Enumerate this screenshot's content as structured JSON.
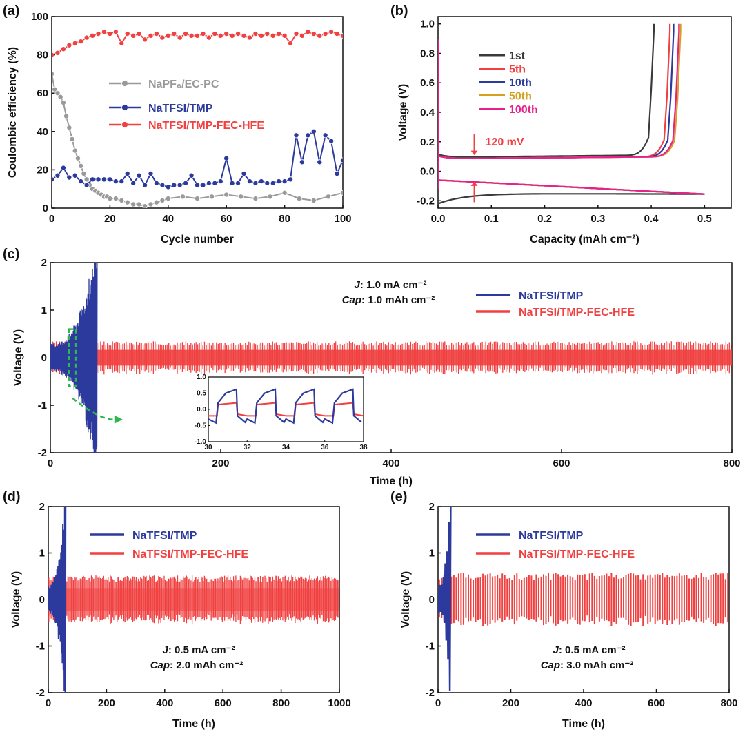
{
  "colors": {
    "gray": "#9a9a9a",
    "blue": "#2b3a9c",
    "red": "#f04040",
    "black": "#3a3a3a",
    "mustard": "#d4a020",
    "pink": "#e8208c",
    "green": "#2db84a"
  },
  "chart_data": [
    {
      "panel": "(a)",
      "type": "line",
      "xlabel": "Cycle number",
      "ylabel": "Coulombic efficiency (%)",
      "xlim": [
        0,
        100
      ],
      "ylim": [
        0,
        100
      ],
      "xticks": [
        "0",
        "20",
        "40",
        "60",
        "80",
        "100"
      ],
      "yticks": [
        "0",
        "20",
        "40",
        "60",
        "80",
        "100"
      ],
      "legend_position": "center-right",
      "series": [
        {
          "name": "NaPF₆/EC-PC",
          "color": "gray",
          "x": [
            0,
            1,
            2,
            3,
            4,
            5,
            6,
            7,
            8,
            9,
            10,
            11,
            12,
            13,
            14,
            15,
            16,
            17,
            18,
            19,
            20,
            22,
            24,
            26,
            28,
            30,
            32,
            34,
            36,
            38,
            40,
            45,
            50,
            55,
            60,
            65,
            70,
            75,
            80,
            85,
            90,
            95,
            100
          ],
          "y": [
            70,
            62,
            60,
            58,
            55,
            48,
            42,
            36,
            30,
            26,
            22,
            18,
            15,
            12,
            10,
            9,
            8,
            7,
            6,
            6,
            5,
            5,
            4,
            3,
            2,
            2,
            1,
            2,
            3,
            4,
            5,
            6,
            5,
            6,
            7,
            6,
            5,
            6,
            8,
            5,
            4,
            6,
            8
          ]
        },
        {
          "name": "NaTFSI/TMP",
          "color": "blue",
          "x": [
            0,
            2,
            4,
            6,
            8,
            10,
            12,
            14,
            16,
            18,
            20,
            22,
            24,
            26,
            28,
            30,
            32,
            34,
            36,
            38,
            40,
            42,
            44,
            46,
            48,
            50,
            52,
            54,
            56,
            58,
            60,
            62,
            64,
            66,
            68,
            70,
            72,
            74,
            76,
            78,
            80,
            82,
            84,
            86,
            88,
            90,
            92,
            94,
            96,
            98,
            100
          ],
          "y": [
            15,
            17,
            21,
            16,
            17,
            14,
            12,
            15,
            15,
            15,
            15,
            14,
            14,
            18,
            13,
            17,
            12,
            18,
            13,
            12,
            11,
            12,
            12,
            13,
            17,
            12,
            12,
            13,
            13,
            14,
            26,
            13,
            13,
            18,
            14,
            13,
            14,
            13,
            13,
            14,
            14,
            15,
            38,
            24,
            38,
            40,
            24,
            38,
            35,
            18,
            25
          ]
        },
        {
          "name": "NaTFSI/TMP-FEC-HFE",
          "color": "red",
          "x": [
            0,
            2,
            4,
            6,
            8,
            10,
            12,
            14,
            16,
            18,
            20,
            22,
            24,
            26,
            28,
            30,
            32,
            34,
            36,
            38,
            40,
            42,
            44,
            46,
            48,
            50,
            52,
            54,
            56,
            58,
            60,
            62,
            64,
            66,
            68,
            70,
            72,
            74,
            76,
            78,
            80,
            82,
            84,
            86,
            88,
            90,
            92,
            94,
            96,
            98,
            100
          ],
          "y": [
            80,
            81,
            83,
            85,
            86,
            87,
            89,
            90,
            91,
            92,
            91,
            92,
            86,
            91,
            90,
            91,
            88,
            90,
            91,
            89,
            90,
            91,
            89,
            91,
            90,
            90,
            91,
            89,
            91,
            90,
            91,
            90,
            91,
            90,
            89,
            91,
            90,
            91,
            90,
            91,
            90,
            86,
            91,
            90,
            92,
            91,
            90,
            91,
            92,
            91,
            90
          ]
        }
      ]
    },
    {
      "panel": "(b)",
      "type": "line",
      "xlabel": "Capacity (mAh cm⁻²)",
      "ylabel": "Voltage (V)",
      "xlim": [
        0,
        0.55
      ],
      "ylim": [
        -0.25,
        1.05
      ],
      "xticks": [
        "0.0",
        "0.1",
        "0.2",
        "0.3",
        "0.4",
        "0.5"
      ],
      "yticks": [
        "-0.2",
        "0.0",
        "0.2",
        "0.4",
        "0.6",
        "0.8",
        "1.0"
      ],
      "annotation": "120 mV",
      "legend_position": "top-left",
      "series": [
        {
          "name": "1st",
          "color": "black",
          "end_capacity": 0.405
        },
        {
          "name": "5th",
          "color": "red",
          "end_capacity": 0.435
        },
        {
          "name": "10th",
          "color": "blue",
          "end_capacity": 0.442
        },
        {
          "name": "50th",
          "color": "mustard",
          "end_capacity": 0.455
        },
        {
          "name": "100th",
          "color": "pink",
          "end_capacity": 0.452
        }
      ]
    },
    {
      "panel": "(c)",
      "type": "line",
      "xlabel": "Time (h)",
      "ylabel": "Voltage (V)",
      "xlim": [
        0,
        800
      ],
      "ylim": [
        -2,
        2
      ],
      "xticks": [
        "0",
        "200",
        "400",
        "600",
        "800"
      ],
      "yticks": [
        "-2",
        "-1",
        "0",
        "1",
        "2"
      ],
      "condition_j": "1.0 mA cm⁻²",
      "condition_cap": "1.0 mAh  cm⁻²",
      "legend_position": "top-right",
      "series": [
        {
          "name": "NaTFSI/TMP",
          "color": "blue",
          "end_time": 55,
          "amplitude": 0.35
        },
        {
          "name": "NaTFSI/TMP-FEC-HFE",
          "color": "red",
          "end_time": 800,
          "amplitude": 0.3
        }
      ],
      "inset": {
        "xlim": [
          30,
          38
        ],
        "ylim": [
          -1,
          1
        ],
        "xticks": [
          "30",
          "32",
          "34",
          "36",
          "38"
        ],
        "yticks": [
          "-1.0",
          "-0.5",
          "0.0",
          "0.5",
          "1.0"
        ]
      }
    },
    {
      "panel": "(d)",
      "type": "line",
      "xlabel": "Time (h)",
      "ylabel": "Voltage (V)",
      "xlim": [
        0,
        1000
      ],
      "ylim": [
        -2,
        2
      ],
      "xticks": [
        "0",
        "200",
        "400",
        "600",
        "800",
        "1000"
      ],
      "yticks": [
        "-2",
        "-1",
        "0",
        "1",
        "2"
      ],
      "condition_j": "0.5 mA cm⁻²",
      "condition_cap": "2.0 mAh  cm⁻²",
      "legend_position": "top-left",
      "series": [
        {
          "name": "NaTFSI/TMP",
          "color": "blue",
          "end_time": 60
        },
        {
          "name": "NaTFSI/TMP-FEC-HFE",
          "color": "red",
          "end_time": 1000,
          "amplitude": 0.45
        }
      ]
    },
    {
      "panel": "(e)",
      "type": "line",
      "xlabel": "Time (h)",
      "ylabel": "Voltage (V)",
      "xlim": [
        0,
        800
      ],
      "ylim": [
        -2,
        2
      ],
      "xticks": [
        "0",
        "200",
        "400",
        "600",
        "800"
      ],
      "yticks": [
        "-2",
        "-1",
        "0",
        "1",
        "2"
      ],
      "condition_j": "0.5 mA cm⁻²",
      "condition_cap": "3.0 mAh  cm⁻²",
      "legend_position": "top-left",
      "series": [
        {
          "name": "NaTFSI/TMP",
          "color": "blue",
          "end_time": 35
        },
        {
          "name": "NaTFSI/TMP-FEC-HFE",
          "color": "red",
          "end_time": 800,
          "amplitude": 0.5
        }
      ]
    }
  ]
}
